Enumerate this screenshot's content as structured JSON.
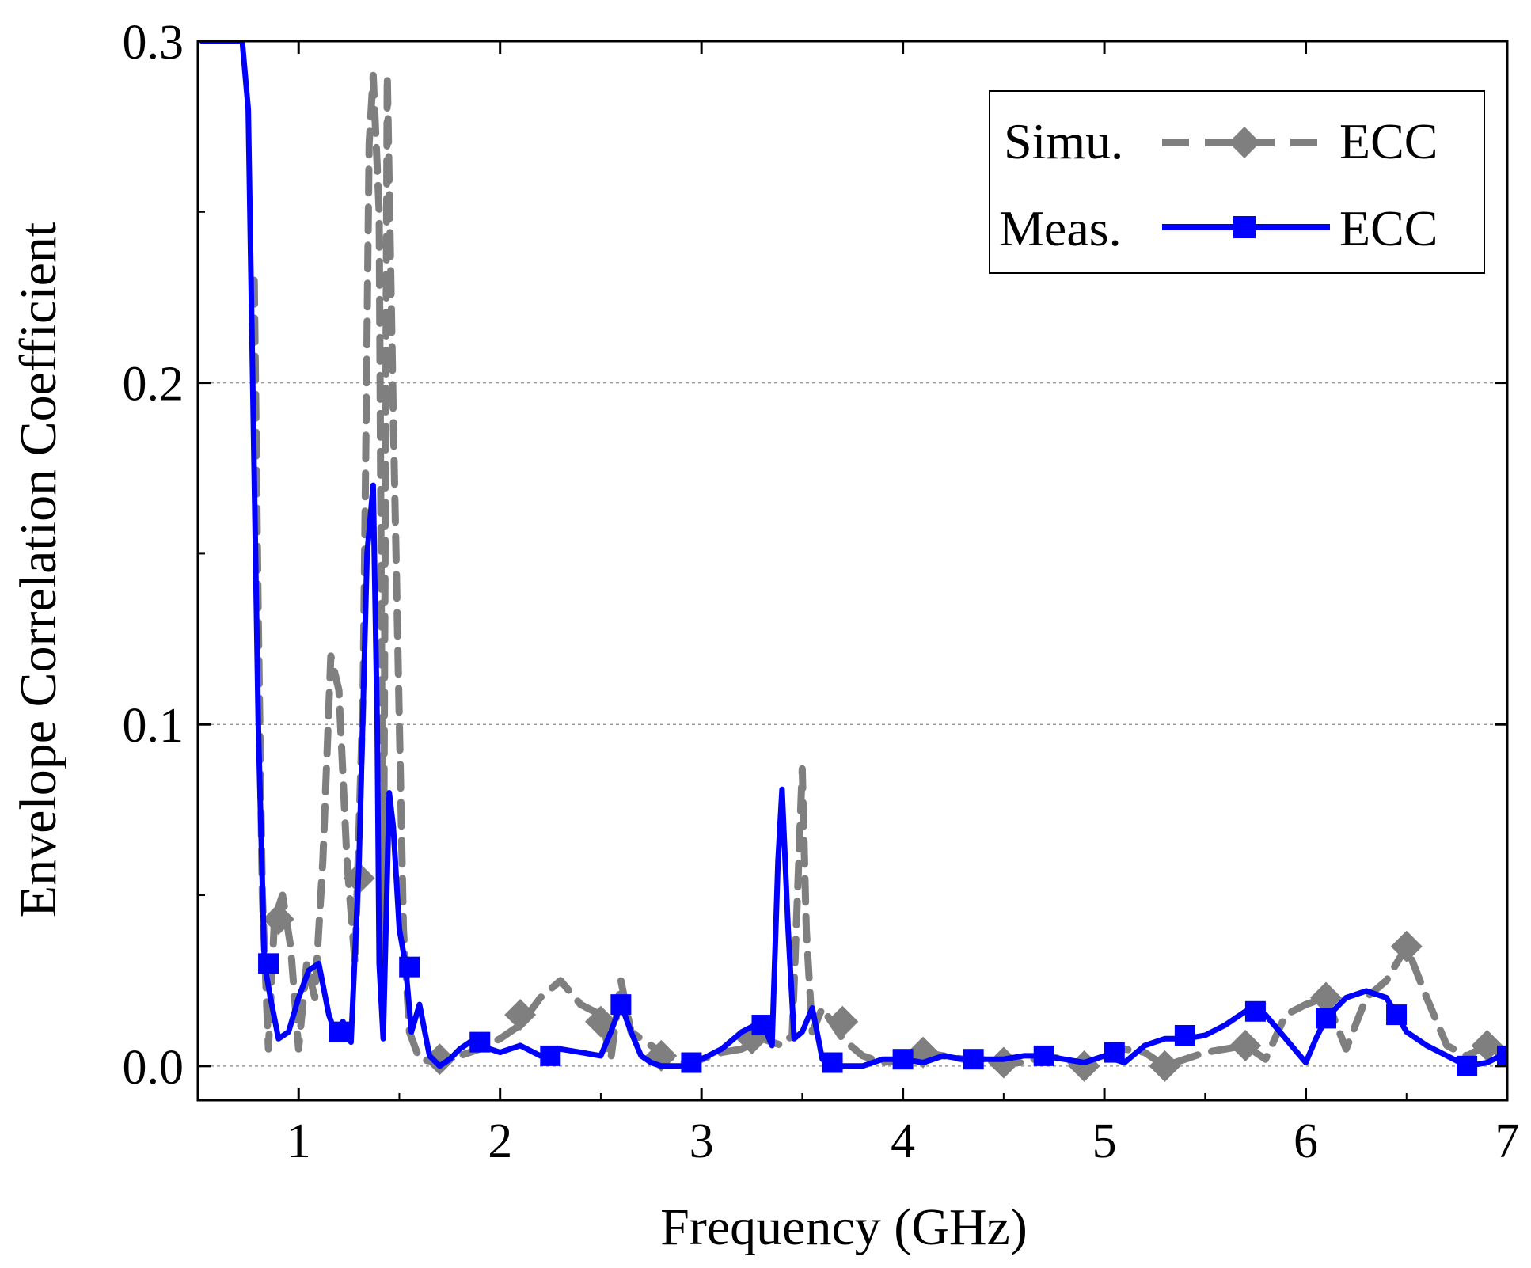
{
  "chart_data": {
    "type": "line",
    "title": "",
    "xlabel": "Frequency (GHz)",
    "ylabel": "Envelope Correlation Coefficient",
    "xlim": [
      0.5,
      7
    ],
    "ylim": [
      -0.01,
      0.3
    ],
    "xticks": [
      1,
      2,
      3,
      4,
      5,
      6,
      7
    ],
    "xtick_labels": [
      "1",
      "2",
      "3",
      "4",
      "5",
      "6",
      "7"
    ],
    "yticks": [
      0.0,
      0.1,
      0.2,
      0.3
    ],
    "ytick_labels": [
      "0.0",
      "0.1",
      "0.2",
      "0.3"
    ],
    "grid": "dashed horizontal lines at major y ticks",
    "legend_position": "top-right",
    "series": [
      {
        "name": "Simu. ECC",
        "legend_prefix": "Simu.",
        "legend_label": "ECC",
        "color": "#7f7f7f",
        "style": "dashed",
        "marker": "diamond",
        "x": [
          0.78,
          0.8,
          0.82,
          0.85,
          0.88,
          0.92,
          0.96,
          1.0,
          1.04,
          1.08,
          1.12,
          1.16,
          1.2,
          1.24,
          1.28,
          1.32,
          1.35,
          1.37,
          1.4,
          1.42,
          1.44,
          1.47,
          1.5,
          1.52,
          1.55,
          1.6,
          1.7,
          1.8,
          1.9,
          2.0,
          2.1,
          2.2,
          2.3,
          2.4,
          2.5,
          2.55,
          2.6,
          2.65,
          2.7,
          2.8,
          2.9,
          3.0,
          3.1,
          3.2,
          3.3,
          3.4,
          3.45,
          3.5,
          3.52,
          3.55,
          3.6,
          3.7,
          3.8,
          3.9,
          4.0,
          4.1,
          4.2,
          4.3,
          4.4,
          4.5,
          4.6,
          4.7,
          4.8,
          4.9,
          5.0,
          5.1,
          5.2,
          5.3,
          5.4,
          5.5,
          5.6,
          5.7,
          5.8,
          5.9,
          6.0,
          6.1,
          6.2,
          6.3,
          6.4,
          6.5,
          6.6,
          6.7,
          6.8,
          6.9,
          7.0
        ],
        "values": [
          0.23,
          0.13,
          0.05,
          0.005,
          0.043,
          0.05,
          0.035,
          0.005,
          0.03,
          0.02,
          0.06,
          0.12,
          0.11,
          0.06,
          0.03,
          0.11,
          0.27,
          0.29,
          0.25,
          0.03,
          0.29,
          0.19,
          0.1,
          0.04,
          0.01,
          0.002,
          0.001,
          0.003,
          0.005,
          0.008,
          0.012,
          0.02,
          0.025,
          0.018,
          0.015,
          0.002,
          0.025,
          0.01,
          0.008,
          0.004,
          0.001,
          0.002,
          0.004,
          0.005,
          0.008,
          0.006,
          0.009,
          0.087,
          0.04,
          0.01,
          0.017,
          0.008,
          0.003,
          0.001,
          0.002,
          0.004,
          0.003,
          0.002,
          0.002,
          0.001,
          0.001,
          0.003,
          0.002,
          0.0,
          0.002,
          0.005,
          0.004,
          0.0,
          0.002,
          0.004,
          0.005,
          0.006,
          0.002,
          0.015,
          0.018,
          0.02,
          0.005,
          0.02,
          0.025,
          0.035,
          0.02,
          0.006,
          0.003,
          0.006,
          0.001
        ]
      },
      {
        "name": "Meas. ECC",
        "legend_prefix": "Meas.",
        "legend_label": "ECC",
        "color": "#0000ff",
        "style": "solid",
        "marker": "square",
        "x": [
          0.52,
          0.72,
          0.75,
          0.8,
          0.83,
          0.86,
          0.9,
          0.95,
          1.0,
          1.05,
          1.1,
          1.15,
          1.18,
          1.22,
          1.26,
          1.3,
          1.34,
          1.37,
          1.39,
          1.4,
          1.42,
          1.45,
          1.47,
          1.5,
          1.53,
          1.56,
          1.6,
          1.65,
          1.7,
          1.75,
          1.8,
          1.85,
          1.9,
          1.95,
          2.0,
          2.1,
          2.2,
          2.3,
          2.4,
          2.5,
          2.55,
          2.6,
          2.65,
          2.7,
          2.75,
          2.8,
          2.9,
          3.0,
          3.1,
          3.2,
          3.3,
          3.35,
          3.38,
          3.4,
          3.43,
          3.46,
          3.5,
          3.55,
          3.6,
          3.65,
          3.7,
          3.8,
          3.9,
          4.0,
          4.1,
          4.2,
          4.3,
          4.4,
          4.5,
          4.6,
          4.7,
          4.8,
          4.9,
          5.0,
          5.1,
          5.2,
          5.3,
          5.4,
          5.5,
          5.6,
          5.7,
          5.8,
          5.9,
          6.0,
          6.05,
          6.1,
          6.2,
          6.3,
          6.4,
          6.5,
          6.6,
          6.7,
          6.8,
          6.9,
          7.0
        ],
        "values": [
          0.3,
          0.3,
          0.28,
          0.1,
          0.03,
          0.02,
          0.008,
          0.01,
          0.02,
          0.028,
          0.03,
          0.015,
          0.01,
          0.013,
          0.007,
          0.06,
          0.15,
          0.17,
          0.1,
          0.03,
          0.008,
          0.08,
          0.07,
          0.04,
          0.03,
          0.01,
          0.018,
          0.003,
          0.0,
          0.002,
          0.005,
          0.007,
          0.007,
          0.005,
          0.004,
          0.006,
          0.003,
          0.005,
          0.004,
          0.003,
          0.01,
          0.018,
          0.01,
          0.003,
          0.001,
          0.0,
          0.0,
          0.002,
          0.005,
          0.01,
          0.013,
          0.006,
          0.06,
          0.081,
          0.04,
          0.008,
          0.01,
          0.017,
          0.002,
          0.0,
          0.0,
          0.0,
          0.002,
          0.002,
          0.001,
          0.003,
          0.002,
          0.002,
          0.002,
          0.003,
          0.003,
          0.002,
          0.001,
          0.003,
          0.001,
          0.006,
          0.008,
          0.008,
          0.009,
          0.012,
          0.016,
          0.015,
          0.008,
          0.001,
          0.008,
          0.014,
          0.02,
          0.022,
          0.02,
          0.01,
          0.006,
          0.003,
          0.0,
          0.001,
          0.004
        ]
      }
    ],
    "markers": {
      "Simu. ECC": {
        "x": [
          0.9,
          1.3,
          1.7,
          2.1,
          2.5,
          2.8,
          3.25,
          3.7,
          4.1,
          4.5,
          4.9,
          5.3,
          5.7,
          6.1,
          6.5,
          6.9
        ],
        "values": [
          0.043,
          0.055,
          0.002,
          0.015,
          0.013,
          0.003,
          0.008,
          0.013,
          0.004,
          0.001,
          0.0,
          0.0,
          0.006,
          0.02,
          0.035,
          0.006
        ]
      },
      "Meas. ECC": {
        "x": [
          0.85,
          1.2,
          1.55,
          1.9,
          2.25,
          2.6,
          2.95,
          3.3,
          3.65,
          4.0,
          4.35,
          4.7,
          5.05,
          5.4,
          5.75,
          6.1,
          6.45,
          6.8,
          7.0
        ],
        "values": [
          0.03,
          0.01,
          0.029,
          0.007,
          0.003,
          0.018,
          0.001,
          0.012,
          0.001,
          0.002,
          0.002,
          0.003,
          0.004,
          0.009,
          0.016,
          0.014,
          0.015,
          0.0,
          0.003
        ]
      }
    }
  }
}
